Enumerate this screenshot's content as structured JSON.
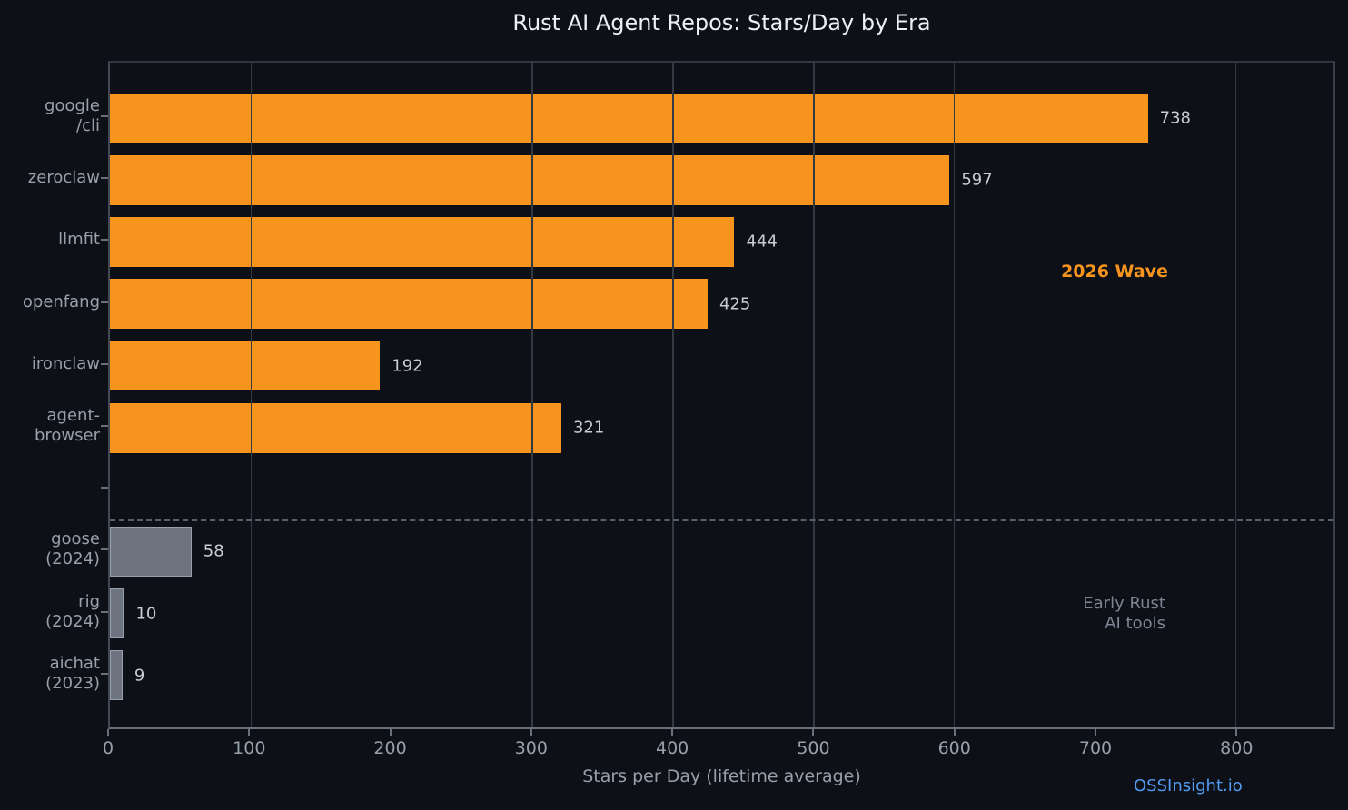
{
  "colors": {
    "background": "#0d1117",
    "bar_2026_wave": "#f7941d",
    "bar_early": "#6d7480",
    "grid": "#333a44",
    "separator": "#596069",
    "annotation_2026": "#f7941d",
    "annotation_early": "#7d8593",
    "link": "#549af2",
    "title_text": "#edf0f4",
    "tick_text": "#98a0aa",
    "value_text": "#c8cdd4"
  },
  "chart_data": {
    "type": "bar",
    "orientation": "horizontal",
    "title": "Rust AI Agent Repos: Stars/Day by Era",
    "xlabel": "Stars per Day (lifetime average)",
    "xlim": [
      0,
      870
    ],
    "x_ticks": [
      0,
      100,
      200,
      300,
      400,
      500,
      600,
      700,
      800
    ],
    "grid": "vertical",
    "legend": "none",
    "rows": [
      {
        "label_lines": [
          "google",
          "/cli"
        ],
        "value": 738,
        "era": "2026-wave"
      },
      {
        "label_lines": [
          "zeroclaw"
        ],
        "value": 597,
        "era": "2026-wave"
      },
      {
        "label_lines": [
          "llmfit"
        ],
        "value": 444,
        "era": "2026-wave"
      },
      {
        "label_lines": [
          "openfang"
        ],
        "value": 425,
        "era": "2026-wave"
      },
      {
        "label_lines": [
          "ironclaw"
        ],
        "value": 192,
        "era": "2026-wave"
      },
      {
        "label_lines": [
          "agent-",
          "browser"
        ],
        "value": 321,
        "era": "2026-wave"
      },
      {
        "label_lines": [],
        "value": null,
        "era": null
      },
      {
        "label_lines": [
          "goose",
          "(2024)"
        ],
        "value": 58,
        "era": "early"
      },
      {
        "label_lines": [
          "rig",
          "(2024)"
        ],
        "value": 10,
        "era": "early"
      },
      {
        "label_lines": [
          "aichat",
          "(2023)"
        ],
        "value": 9,
        "era": "early"
      }
    ],
    "annotations": {
      "wave": {
        "text": "2026 Wave"
      },
      "early": {
        "lines": [
          "Early Rust",
          "AI tools"
        ]
      }
    }
  },
  "watermark": {
    "text": "OSSInsight.io"
  }
}
